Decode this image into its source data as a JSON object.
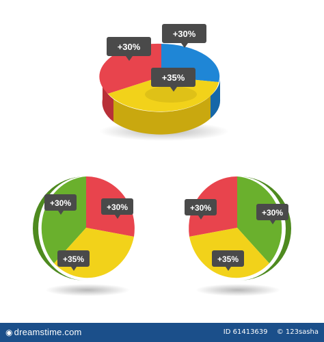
{
  "chart_data": [
    {
      "type": "pie",
      "style": "3d-tilted",
      "slices": [
        {
          "label": "+30%",
          "value": 30,
          "color": "#e8444d"
        },
        {
          "label": "+30%",
          "value": 30,
          "color": "#1f86d6"
        },
        {
          "label": "+35%",
          "value": 35,
          "color": "#f2d21a"
        }
      ]
    },
    {
      "type": "pie",
      "style": "3d-front",
      "slices": [
        {
          "label": "+30%",
          "value": 30,
          "color": "#6ab02d"
        },
        {
          "label": "+30%",
          "value": 30,
          "color": "#e8444d"
        },
        {
          "label": "+35%",
          "value": 35,
          "color": "#f2d21a"
        }
      ]
    },
    {
      "type": "pie",
      "style": "3d-front",
      "slices": [
        {
          "label": "+30%",
          "value": 30,
          "color": "#e8444d"
        },
        {
          "label": "+30%",
          "value": 30,
          "color": "#6ab02d"
        },
        {
          "label": "+35%",
          "value": 35,
          "color": "#f2d21a"
        }
      ]
    }
  ],
  "footer": {
    "brand": "dreamstime.com",
    "id_text": "ID 61413639",
    "copyright": "© 123sasha"
  },
  "colors": {
    "tag_bg": "#4a4a4a",
    "footer_bg": "#1b4f8a",
    "red_side": "#b83038",
    "yellow_side": "#c9a80f",
    "blue_side": "#1667a8",
    "green_side": "#4e8a1f"
  }
}
